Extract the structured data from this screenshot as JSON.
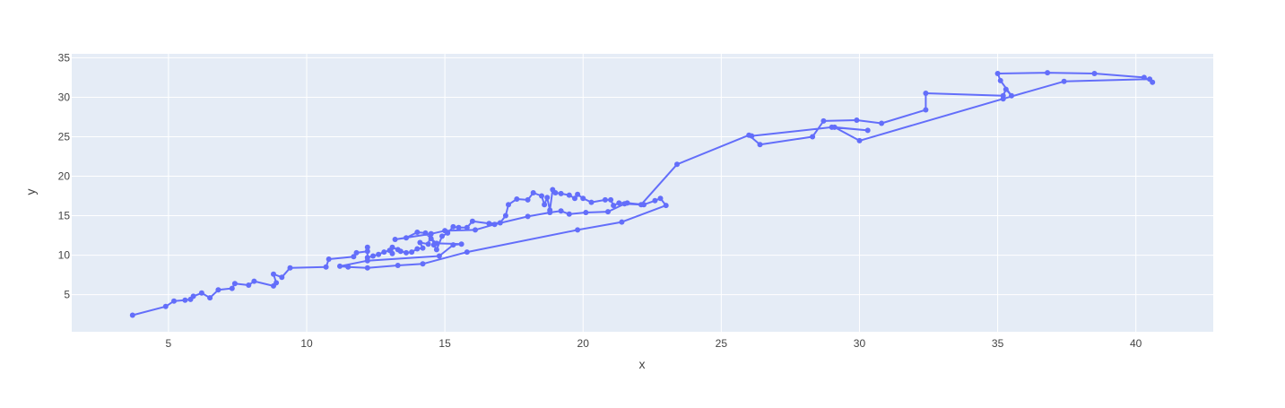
{
  "chart_data": {
    "type": "line",
    "mode": "lines+markers",
    "title": "",
    "xlabel": "x",
    "ylabel": "y",
    "xlim": [
      1.5,
      42.8
    ],
    "ylim": [
      0.3,
      35.5
    ],
    "xticks": [
      5,
      10,
      15,
      20,
      25,
      30,
      35,
      40
    ],
    "yticks": [
      5,
      10,
      15,
      20,
      25,
      30,
      35
    ],
    "grid": true,
    "legend": "none",
    "colors": {
      "line": "#636efa",
      "plot_bg": "#e5ecf6",
      "grid": "#ffffff",
      "paper_bg": "#ffffff"
    },
    "series": [
      {
        "x": [
          3.7,
          4.9,
          5.2,
          5.6,
          5.8,
          5.9,
          6.2,
          6.5,
          6.8,
          7.3,
          7.4,
          7.9,
          8.1,
          8.8,
          8.9,
          8.8,
          9.1,
          9.4,
          10.7,
          10.8,
          11.7,
          11.8,
          12.2,
          12.2,
          12.2,
          12.4,
          12.6,
          12.8,
          13.0,
          13.1,
          13.1,
          13.3,
          13.4,
          13.6,
          13.8,
          14.0,
          14.2,
          14.1,
          14.4,
          14.5,
          14.6,
          14.7,
          14.9,
          15.1,
          15.3,
          15.5,
          15.8,
          16.0,
          16.6,
          17.0,
          17.2,
          17.3,
          17.6,
          18.0,
          18.2,
          18.5,
          18.6,
          18.7,
          18.8,
          18.9,
          19.0,
          19.2,
          19.5,
          19.7,
          19.8,
          20.0,
          20.3,
          20.8,
          21.0,
          21.1,
          21.3,
          21.6,
          22.2,
          22.6,
          22.8,
          23.0,
          21.4,
          19.8,
          15.8,
          14.2,
          13.3,
          12.2,
          11.5,
          11.2,
          12.2,
          14.8,
          15.3,
          15.6,
          14.7,
          14.5,
          14.3,
          14.0,
          13.6,
          13.2,
          14.5,
          15.0,
          16.1,
          16.8,
          18.0,
          18.8,
          19.2,
          19.5,
          20.1,
          20.9,
          21.5,
          22.1,
          23.4,
          26.0,
          26.4,
          28.3,
          28.7,
          29.9,
          30.8,
          32.4,
          32.4,
          35.2,
          35.3,
          35.5,
          35.1,
          35.0,
          36.8,
          38.5,
          40.3,
          40.6,
          40.5,
          37.4,
          35.2,
          30.0,
          29.1,
          30.3,
          29.0,
          26.1
        ],
        "y": [
          2.4,
          3.5,
          4.2,
          4.3,
          4.4,
          4.8,
          5.2,
          4.6,
          5.6,
          5.8,
          6.4,
          6.2,
          6.7,
          6.1,
          6.5,
          7.6,
          7.2,
          8.4,
          8.5,
          9.5,
          9.8,
          10.3,
          10.5,
          11.0,
          9.7,
          9.9,
          10.1,
          10.4,
          10.6,
          10.2,
          11.0,
          10.7,
          10.5,
          10.3,
          10.4,
          10.8,
          10.9,
          11.6,
          11.4,
          12.7,
          11.3,
          10.7,
          12.4,
          12.8,
          13.6,
          13.5,
          13.5,
          14.3,
          14.0,
          14.1,
          15.0,
          16.4,
          17.1,
          17.0,
          17.9,
          17.5,
          16.4,
          17.3,
          15.7,
          18.3,
          17.9,
          17.8,
          17.6,
          17.2,
          17.7,
          17.2,
          16.7,
          17.0,
          17.0,
          16.3,
          16.6,
          16.6,
          16.4,
          16.9,
          17.2,
          16.3,
          14.2,
          13.2,
          10.4,
          8.9,
          8.7,
          8.4,
          8.5,
          8.6,
          9.3,
          9.9,
          11.3,
          11.4,
          11.5,
          12.1,
          12.8,
          12.9,
          12.2,
          12.0,
          12.7,
          13.1,
          13.2,
          13.9,
          14.9,
          15.4,
          15.6,
          15.2,
          15.4,
          15.5,
          16.5,
          16.4,
          21.5,
          25.2,
          24.0,
          25.0,
          27.0,
          27.1,
          26.7,
          28.4,
          30.5,
          30.2,
          31.0,
          30.2,
          32.1,
          33.0,
          33.1,
          33.0,
          32.5,
          31.9,
          32.3,
          32.0,
          29.8,
          24.5,
          26.2,
          25.8,
          26.2,
          25.1
        ]
      }
    ]
  }
}
